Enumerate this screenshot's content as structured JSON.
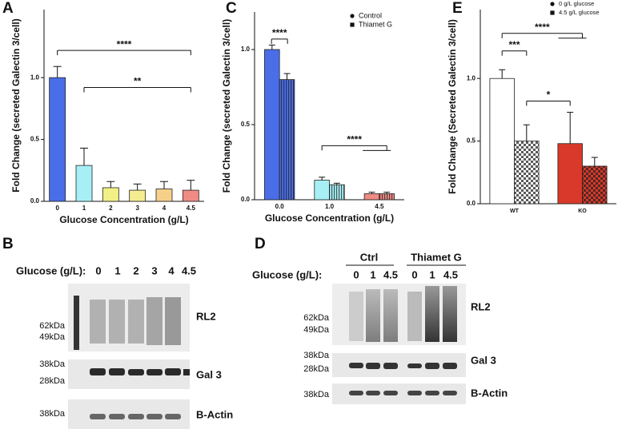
{
  "chart_data": [
    {
      "type": "bar",
      "panel_label": "A",
      "y_label": "Fold Change (secreted Galectin 3/cell)",
      "x_label": "Glucose Concentration (g/L)",
      "categories": [
        "0",
        "1",
        "2",
        "3",
        "4",
        "4.5"
      ],
      "values": [
        1.0,
        0.29,
        0.11,
        0.09,
        0.1,
        0.09
      ],
      "errors": [
        0.09,
        0.14,
        0.05,
        0.05,
        0.06,
        0.08
      ],
      "colors": [
        "#4a6ee8",
        "#a6f0f5",
        "#f2ef86",
        "#f5ec92",
        "#f6cf8a",
        "#f08a84"
      ],
      "ylim": [
        0,
        1.55
      ],
      "yticks": [
        {
          "value": 0,
          "label": "0.0"
        },
        {
          "value": 0.5,
          "label": "0.5"
        },
        {
          "value": 1,
          "label": "1.0"
        }
      ],
      "annotations": [
        "****",
        "**"
      ]
    },
    {
      "type": "bar",
      "panel_label": "C",
      "y_label": "Fold Change (secreted Galectin 3/cell)",
      "x_label": "Glucose Concentration (g/L)",
      "categories": [
        "0.0",
        "1.0",
        "4.5"
      ],
      "category_colors": [
        "#4a6ee8",
        "#a6f0f5",
        "#f08a84"
      ],
      "series": [
        {
          "name": "Control",
          "marker": "circle",
          "pattern": "solid",
          "values": [
            1.0,
            0.13,
            0.04
          ],
          "errors": [
            0.03,
            0.02,
            0.01
          ]
        },
        {
          "name": "Thiamet G",
          "marker": "square",
          "pattern": "stripes",
          "values": [
            0.8,
            0.1,
            0.04
          ],
          "errors": [
            0.04,
            0.01,
            0.01
          ]
        }
      ],
      "ylim": [
        0,
        1.25
      ],
      "yticks": [
        {
          "value": 0,
          "label": "0.0"
        },
        {
          "value": 0.5,
          "label": "0.5"
        },
        {
          "value": 1,
          "label": "1.0"
        }
      ],
      "annotations": [
        "****",
        "****"
      ]
    },
    {
      "type": "bar",
      "panel_label": "E",
      "y_label": "Fold Change (Secreted Galectin 3/cell)",
      "categories": [
        "WT",
        "KO"
      ],
      "category_colors": [
        "#ffffff",
        "#d9392a"
      ],
      "series": [
        {
          "name": "0 g/L glucose",
          "marker": "circle",
          "pattern": "solid",
          "values": [
            1.0,
            0.48
          ],
          "errors": [
            0.07,
            0.25
          ]
        },
        {
          "name": "4.5 g/L glucose",
          "marker": "square",
          "pattern": "checker",
          "values": [
            0.5,
            0.3
          ],
          "errors": [
            0.13,
            0.07
          ]
        }
      ],
      "ylim": [
        0,
        1.55
      ],
      "yticks": [
        {
          "value": 0,
          "label": "0.0"
        },
        {
          "value": 0.5,
          "label": "0.5"
        },
        {
          "value": 1,
          "label": "1.0"
        }
      ],
      "annotations": [
        "***",
        "****",
        "*"
      ]
    }
  ],
  "blots": {
    "B": {
      "panel_label": "B",
      "lane_title": "Glucose (g/L):",
      "lanes": [
        "0",
        "1",
        "2",
        "3",
        "4",
        "4.5"
      ],
      "markers": [
        "62kDa",
        "49kDa",
        "38kDa",
        "28kDa",
        "38kDa"
      ],
      "bands": [
        "RL2",
        "Gal 3",
        "B-Actin"
      ]
    },
    "D": {
      "panel_label": "D",
      "groups": [
        "Ctrl",
        "Thiamet G"
      ],
      "lane_title": "Glucose (g/L):",
      "lanes": [
        "0",
        "1",
        "4.5",
        "0",
        "1",
        "4.5"
      ],
      "markers": [
        "62kDa",
        "49kDa",
        "38kDa",
        "28kDa",
        "38kDa"
      ],
      "bands": [
        "RL2",
        "Gal 3",
        "B-Actin"
      ]
    }
  }
}
